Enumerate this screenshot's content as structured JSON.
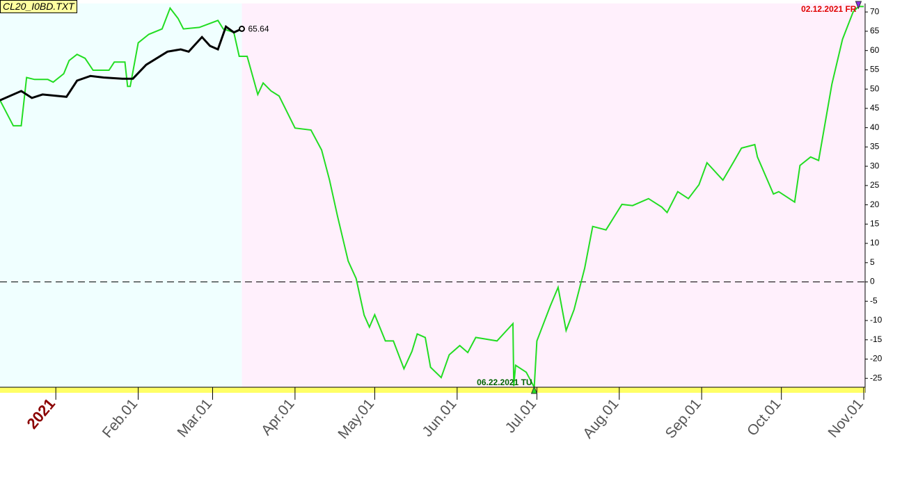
{
  "chart_data": {
    "type": "line",
    "title": "CL20_I0BD.TXT",
    "xlim": [
      -21,
      304.5
    ],
    "ylim": [
      -27.3,
      72.2
    ],
    "xticks": [
      {
        "value": 0,
        "label": "2021"
      },
      {
        "value": 31,
        "label": "Feb.01"
      },
      {
        "value": 59,
        "label": "Mar.01"
      },
      {
        "value": 90,
        "label": "Apr.01"
      },
      {
        "value": 120,
        "label": "May.01"
      },
      {
        "value": 151,
        "label": "Jun.01"
      },
      {
        "value": 181,
        "label": "Jul.01"
      },
      {
        "value": 212,
        "label": "Aug.01"
      },
      {
        "value": 243,
        "label": "Sep.01"
      },
      {
        "value": 273,
        "label": "Oct.01"
      },
      {
        "value": 304,
        "label": "Nov.01"
      }
    ],
    "yticks": [
      -25,
      -20,
      -15,
      -10,
      -5,
      0,
      5,
      10,
      15,
      20,
      25,
      30,
      35,
      40,
      45,
      50,
      55,
      60,
      65,
      70
    ],
    "zero_line": true,
    "annotations": [
      "02.12.2021 FR",
      "06.22.2021 TU"
    ],
    "series": [
      {
        "color": "#22dd22",
        "x": [
          -21,
          -16,
          -13,
          -11,
          -8,
          -3,
          -1,
          3,
          5,
          8,
          11,
          14,
          20,
          22,
          26,
          27,
          28,
          31,
          35,
          40,
          43,
          46,
          48,
          54,
          56,
          61,
          63,
          67,
          69,
          72,
          76,
          78,
          81,
          84,
          90,
          96,
          100,
          103,
          106,
          110,
          113,
          116,
          118,
          120,
          124,
          127,
          131,
          134,
          136,
          139,
          141,
          145,
          148,
          152,
          155,
          158,
          166,
          172,
          172.3,
          173,
          177,
          180,
          181,
          186,
          189,
          192,
          195,
          199,
          202,
          207,
          213,
          217,
          223,
          228,
          230,
          234,
          238,
          242,
          245,
          251,
          255,
          258,
          263,
          264,
          270,
          272,
          278,
          280,
          284,
          287,
          292,
          296,
          300,
          302,
          304
        ],
        "values": [
          47.1,
          40.5,
          40.5,
          53,
          52.5,
          52.5,
          51.8,
          54,
          57.4,
          59,
          58,
          54.9,
          54.9,
          57,
          57,
          50.7,
          50.7,
          62,
          64.2,
          65.6,
          71,
          68.3,
          65.6,
          66,
          66.5,
          67.8,
          65.6,
          64.7,
          58.5,
          58.5,
          48.6,
          51.6,
          49.5,
          48.2,
          39.9,
          39.4,
          34.2,
          26.4,
          17,
          5.4,
          0.9,
          -8.6,
          -11.7,
          -8.5,
          -15.3,
          -15.3,
          -22.5,
          -18,
          -13.5,
          -14.4,
          -22.1,
          -24.8,
          -18.9,
          -16.5,
          -18.3,
          -14.4,
          -15.3,
          -10.8,
          -27,
          -21.6,
          -23.4,
          -27.3,
          -15.3,
          -6.3,
          -1.4,
          -12.6,
          -7.2,
          3.6,
          14.4,
          13.5,
          20.1,
          19.8,
          21.6,
          19.4,
          18,
          23.4,
          21.6,
          25.2,
          30.9,
          26.4,
          31.1,
          34.7,
          35.6,
          32.4,
          22.8,
          23.4,
          20.7,
          30.2,
          32.4,
          31.5,
          51.3,
          62.9,
          70,
          71.4,
          71.4
        ]
      },
      {
        "color": "#000000",
        "x": [
          -21,
          -13,
          -9,
          -5,
          4,
          8,
          13,
          18,
          25,
          29,
          34,
          42,
          47,
          50,
          55,
          58,
          61,
          64,
          67,
          70
        ],
        "values": [
          47.1,
          49.5,
          47.7,
          48.6,
          48,
          52.2,
          53.4,
          53,
          52.7,
          52.7,
          56.3,
          59.7,
          60.3,
          59.7,
          63.5,
          61.2,
          60.3,
          66.2,
          64.7,
          65.64
        ]
      }
    ]
  }
}
